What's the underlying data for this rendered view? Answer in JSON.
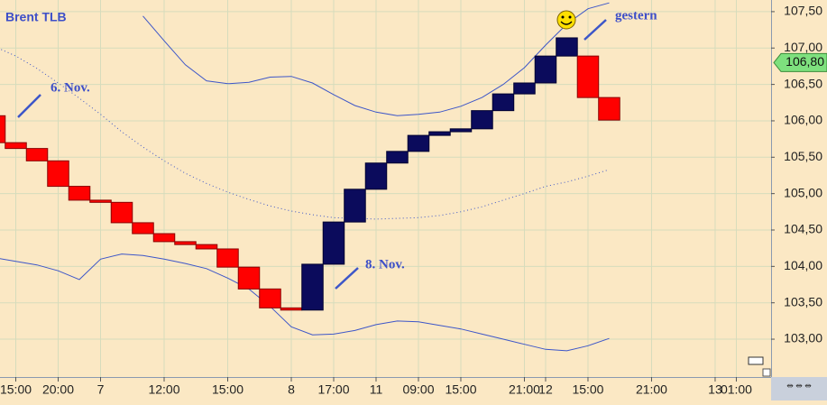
{
  "chart_data": {
    "type": "line-break",
    "title": "Brent TLB",
    "x": [
      0,
      1,
      2,
      3,
      4,
      5,
      6,
      7,
      8,
      9,
      10,
      11,
      12,
      13,
      14,
      15,
      16,
      17,
      18,
      19,
      20,
      21,
      22,
      23,
      24,
      25,
      26,
      27,
      28,
      29
    ],
    "open": [
      106.07,
      105.7,
      105.62,
      105.45,
      105.1,
      104.91,
      104.88,
      104.6,
      104.45,
      104.34,
      104.3,
      104.24,
      103.99,
      103.69,
      103.43,
      103.4,
      104.03,
      104.61,
      105.06,
      105.42,
      105.58,
      105.8,
      105.85,
      105.89,
      106.14,
      106.37,
      106.52,
      106.89,
      106.89,
      106.32
    ],
    "close": [
      105.7,
      105.62,
      105.45,
      105.1,
      104.91,
      104.88,
      104.6,
      104.45,
      104.34,
      104.3,
      104.24,
      103.99,
      103.69,
      103.43,
      103.4,
      104.03,
      104.61,
      105.06,
      105.42,
      105.58,
      105.8,
      105.85,
      105.89,
      106.14,
      106.37,
      106.52,
      106.89,
      107.14,
      106.32,
      106.01
    ],
    "up_color": "#0b0b5c",
    "down_color": "#ff0000",
    "bands": [
      {
        "color": "#3d56c8",
        "dotted": false,
        "values": [
          null,
          null,
          null,
          null,
          null,
          null,
          null,
          107.44,
          107.1,
          106.77,
          106.55,
          106.51,
          106.53,
          106.6,
          106.61,
          106.52,
          106.36,
          106.21,
          106.12,
          106.07,
          106.09,
          106.12,
          106.2,
          106.32,
          106.5,
          106.73,
          107.04,
          107.33,
          107.54,
          107.62
        ]
      },
      {
        "color": "#3d56c8",
        "dotted": true,
        "values": [
          107.02,
          106.89,
          106.72,
          106.52,
          106.31,
          106.09,
          105.85,
          105.64,
          105.45,
          105.28,
          105.14,
          105.02,
          104.92,
          104.83,
          104.76,
          104.71,
          104.67,
          104.66,
          104.65,
          104.66,
          104.67,
          104.7,
          104.75,
          104.82,
          104.91,
          105.0,
          105.1,
          105.16,
          105.24,
          105.33
        ]
      },
      {
        "color": "#3d56c8",
        "dotted": false,
        "values": [
          104.12,
          104.07,
          104.02,
          103.94,
          103.82,
          104.1,
          104.17,
          104.15,
          104.1,
          104.04,
          103.97,
          103.84,
          103.69,
          103.45,
          103.17,
          103.06,
          103.07,
          103.12,
          103.2,
          103.25,
          103.24,
          103.19,
          103.14,
          103.07,
          103.0,
          102.93,
          102.86,
          102.84,
          102.91,
          103.01
        ]
      }
    ],
    "last_price": {
      "value": 106.8,
      "label": "106,80"
    },
    "annotations": [
      "6. Nov.",
      "8. Nov.",
      "gestern"
    ],
    "xlim": [
      0.255,
      36.64
    ],
    "xticks": [
      {
        "value": 1,
        "label": "15:00"
      },
      {
        "value": 3,
        "label": "20:00"
      },
      {
        "value": 5,
        "label": "7"
      },
      {
        "value": 8,
        "label": "12:00"
      },
      {
        "value": 11,
        "label": "15:00"
      },
      {
        "value": 14,
        "label": "8"
      },
      {
        "value": 16,
        "label": "17:00"
      },
      {
        "value": 18,
        "label": "11"
      },
      {
        "value": 20,
        "label": "09:00"
      },
      {
        "value": 22,
        "label": "15:00"
      },
      {
        "value": 25,
        "label": "21:00"
      },
      {
        "value": 26,
        "label": "12"
      },
      {
        "value": 28,
        "label": "15:00"
      },
      {
        "value": 31,
        "label": "21:00"
      },
      {
        "value": 34,
        "label": "13"
      },
      {
        "value": 35,
        "label": "01:00"
      }
    ],
    "ylim": [
      102.48,
      107.66
    ],
    "yticks": [
      {
        "value": 103,
        "label": "103,00"
      },
      {
        "value": 103.5,
        "label": "103,50"
      },
      {
        "value": 104,
        "label": "104,00"
      },
      {
        "value": 104.5,
        "label": "104,50"
      },
      {
        "value": 105,
        "label": "105,00"
      },
      {
        "value": 105.5,
        "label": "105,50"
      },
      {
        "value": 106,
        "label": "106,00"
      },
      {
        "value": 106.5,
        "label": "106,50"
      },
      {
        "value": 107,
        "label": "107,00"
      },
      {
        "value": 107.5,
        "label": "107,50"
      }
    ],
    "grid": true
  }
}
